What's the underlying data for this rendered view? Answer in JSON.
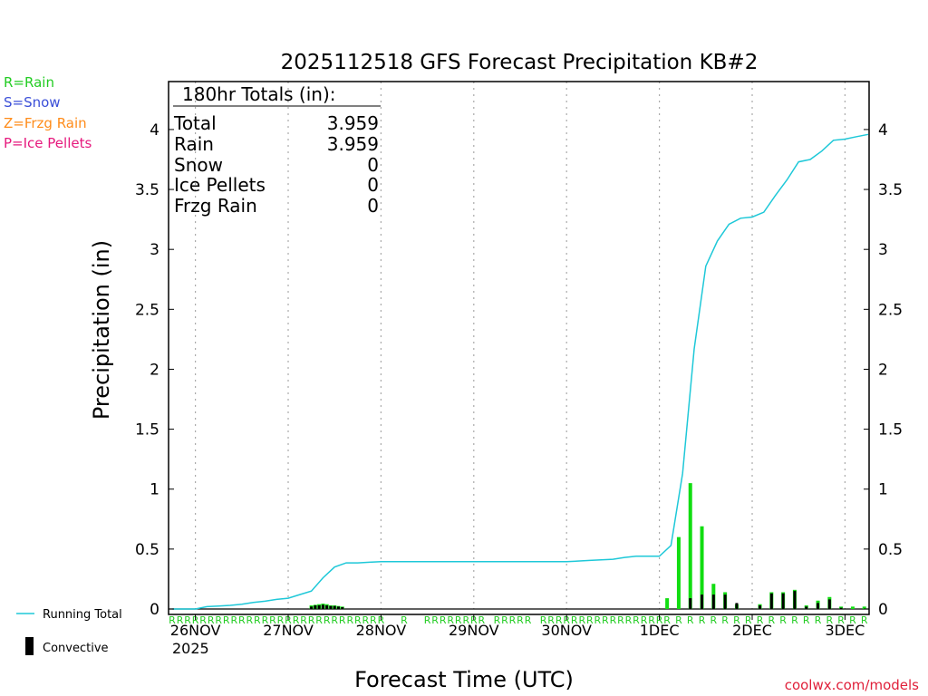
{
  "chart_data": {
    "type": "bar+line",
    "title": "2025112518 GFS Forecast Precipitation KB#2",
    "xlabel": "Forecast Time (UTC)",
    "ylabel": "Precipitation (in)",
    "ylim": [
      0,
      4.4
    ],
    "y_ticks": [
      "0",
      "0.5",
      "1",
      "1.5",
      "2",
      "2.5",
      "3",
      "3.5",
      "4"
    ],
    "x_unit": "forecast hour",
    "xlim": [
      0,
      180
    ],
    "date_ticks": [
      {
        "hour": 6,
        "label": "26NOV"
      },
      {
        "hour": 30,
        "label": "27NOV"
      },
      {
        "hour": 54,
        "label": "28NOV"
      },
      {
        "hour": 78,
        "label": "29NOV"
      },
      {
        "hour": 102,
        "label": "30NOV"
      },
      {
        "hour": 126,
        "label": "1DEC"
      },
      {
        "hour": 150,
        "label": "2DEC"
      },
      {
        "hour": 174,
        "label": "3DEC"
      }
    ],
    "year_label": "2025",
    "legend": [
      {
        "label": "R=Rain",
        "color": "#22cc22"
      },
      {
        "label": "S=Snow",
        "color": "#3b4fd8"
      },
      {
        "label": "Z=Frzg Rain",
        "color": "#ff8c1a"
      },
      {
        "label": "P=Ice Pellets",
        "color": "#e6197d"
      }
    ],
    "lower_legend": {
      "running_total": "Running Total",
      "convective": "Convective"
    },
    "totals_box": {
      "header": "180hr Totals (in):",
      "rows": [
        {
          "label": "Total",
          "value": "3.959"
        },
        {
          "label": "Rain",
          "value": "3.959"
        },
        {
          "label": "Snow",
          "value": "0"
        },
        {
          "label": "Ice Pellets",
          "value": "0"
        },
        {
          "label": "Frzg Rain",
          "value": "0"
        }
      ]
    },
    "running_total": [
      [
        0,
        0
      ],
      [
        6,
        0
      ],
      [
        9,
        0.02
      ],
      [
        12,
        0.025
      ],
      [
        15,
        0.03
      ],
      [
        18,
        0.04
      ],
      [
        21,
        0.055
      ],
      [
        24,
        0.065
      ],
      [
        27,
        0.08
      ],
      [
        30,
        0.09
      ],
      [
        33,
        0.12
      ],
      [
        36,
        0.15
      ],
      [
        39,
        0.26
      ],
      [
        42,
        0.35
      ],
      [
        45,
        0.385
      ],
      [
        48,
        0.385
      ],
      [
        51,
        0.39
      ],
      [
        54,
        0.395
      ],
      [
        78,
        0.395
      ],
      [
        102,
        0.395
      ],
      [
        108,
        0.405
      ],
      [
        114,
        0.415
      ],
      [
        117,
        0.43
      ],
      [
        120,
        0.44
      ],
      [
        126,
        0.44
      ],
      [
        129,
        0.53
      ],
      [
        132,
        1.13
      ],
      [
        135,
        2.17
      ],
      [
        138,
        2.86
      ],
      [
        141,
        3.07
      ],
      [
        144,
        3.21
      ],
      [
        147,
        3.26
      ],
      [
        150,
        3.27
      ],
      [
        153,
        3.31
      ],
      [
        156,
        3.45
      ],
      [
        159,
        3.58
      ],
      [
        162,
        3.73
      ],
      [
        165,
        3.75
      ],
      [
        168,
        3.82
      ],
      [
        171,
        3.91
      ],
      [
        174,
        3.92
      ],
      [
        177,
        3.94
      ],
      [
        180,
        3.959
      ]
    ],
    "rain_bars": [
      [
        36,
        0.03
      ],
      [
        37,
        0.035
      ],
      [
        38,
        0.04
      ],
      [
        39,
        0.045
      ],
      [
        40,
        0.04
      ],
      [
        41,
        0.03
      ],
      [
        42,
        0.03
      ],
      [
        43,
        0.025
      ],
      [
        44,
        0.02
      ],
      [
        128,
        0.09
      ],
      [
        131,
        0.6
      ],
      [
        134,
        1.05
      ],
      [
        137,
        0.69
      ],
      [
        140,
        0.21
      ],
      [
        143,
        0.14
      ],
      [
        146,
        0.04
      ],
      [
        152,
        0.04
      ],
      [
        155,
        0.14
      ],
      [
        158,
        0.14
      ],
      [
        161,
        0.16
      ],
      [
        164,
        0.03
      ],
      [
        167,
        0.07
      ],
      [
        170,
        0.1
      ],
      [
        173,
        0.02
      ],
      [
        176,
        0.02
      ],
      [
        179,
        0.02
      ]
    ],
    "convective_bars": [
      [
        36,
        0.02
      ],
      [
        37,
        0.03
      ],
      [
        38,
        0.03
      ],
      [
        39,
        0.035
      ],
      [
        40,
        0.03
      ],
      [
        41,
        0.025
      ],
      [
        42,
        0.025
      ],
      [
        43,
        0.02
      ],
      [
        44,
        0.015
      ],
      [
        134,
        0.09
      ],
      [
        137,
        0.12
      ],
      [
        140,
        0.12
      ],
      [
        143,
        0.12
      ],
      [
        146,
        0.05
      ],
      [
        152,
        0.03
      ],
      [
        155,
        0.13
      ],
      [
        158,
        0.13
      ],
      [
        161,
        0.15
      ],
      [
        164,
        0.02
      ],
      [
        167,
        0.05
      ],
      [
        170,
        0.08
      ],
      [
        173,
        0.01
      ]
    ],
    "precip_type_marker": "R",
    "precip_type_hours": [
      0,
      2,
      4,
      6,
      8,
      10,
      12,
      14,
      16,
      18,
      20,
      22,
      24,
      26,
      28,
      30,
      32,
      34,
      36,
      38,
      40,
      42,
      44,
      46,
      48,
      50,
      52,
      54,
      60,
      66,
      68,
      70,
      72,
      74,
      76,
      78,
      80,
      84,
      86,
      88,
      90,
      92,
      96,
      98,
      100,
      102,
      104,
      106,
      108,
      110,
      112,
      114,
      116,
      118,
      120,
      122,
      124,
      126,
      128,
      131,
      134,
      137,
      140,
      143,
      146,
      149,
      152,
      155,
      158,
      161,
      164,
      167,
      170,
      173,
      176,
      179
    ],
    "colors": {
      "running_total": "#1ec8d8",
      "rain_bar": "#11dd11",
      "convective_bar": "#000000",
      "gridline": "#aaaaaa",
      "rain_marker": "#22cc22",
      "credit": "#e0203a"
    }
  },
  "credit": "coolwx.com/models"
}
